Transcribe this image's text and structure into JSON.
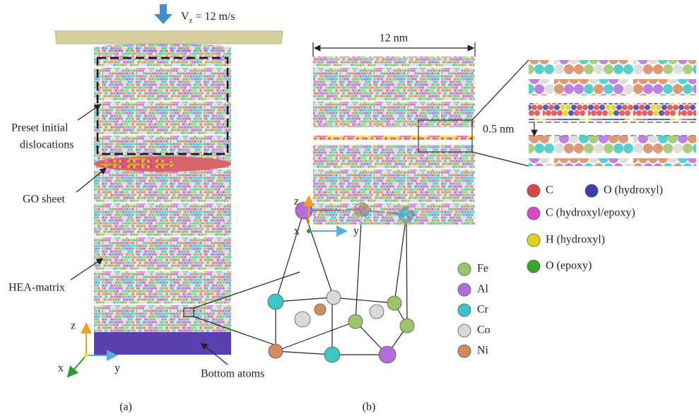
{
  "panel_a": {
    "velocity": {
      "symbol": "V",
      "subscript": "z",
      "value": "= 12 m/s"
    },
    "labels": {
      "preset_line1": "Preset initial",
      "preset_line2": "dislocations",
      "go_sheet": "GO sheet",
      "hea_matrix": "HEA-matrix",
      "bottom_atoms": "Bottom atoms"
    },
    "axes": {
      "z": "z",
      "x": "x",
      "y": "y"
    },
    "legend": [
      {
        "label": "Fe",
        "color": "#9cc46c"
      },
      {
        "label": "Al",
        "color": "#b56cd9"
      },
      {
        "label": "Cr",
        "color": "#3ec6c6"
      },
      {
        "label": "Co",
        "color": "#d9d9d9"
      },
      {
        "label": "Ni",
        "color": "#d58a60"
      }
    ],
    "caption": "(a)"
  },
  "panel_b": {
    "width_label": "12 nm",
    "gap_label": "0.5 nm",
    "axes": {
      "z": "z",
      "x": "x",
      "y": "y"
    },
    "legend": [
      {
        "label": "C",
        "color": "#d9474a"
      },
      {
        "label": "O (hydroxyl)",
        "color": "#3b3fa8"
      },
      {
        "label": "C (hydroxyl/epoxy)",
        "color": "#d24bc4"
      },
      {
        "label": "H (hydroxyl)",
        "color": "#e0d020"
      },
      {
        "label": "O (epoxy)",
        "color": "#3aa52a"
      }
    ],
    "caption": "(b)"
  }
}
